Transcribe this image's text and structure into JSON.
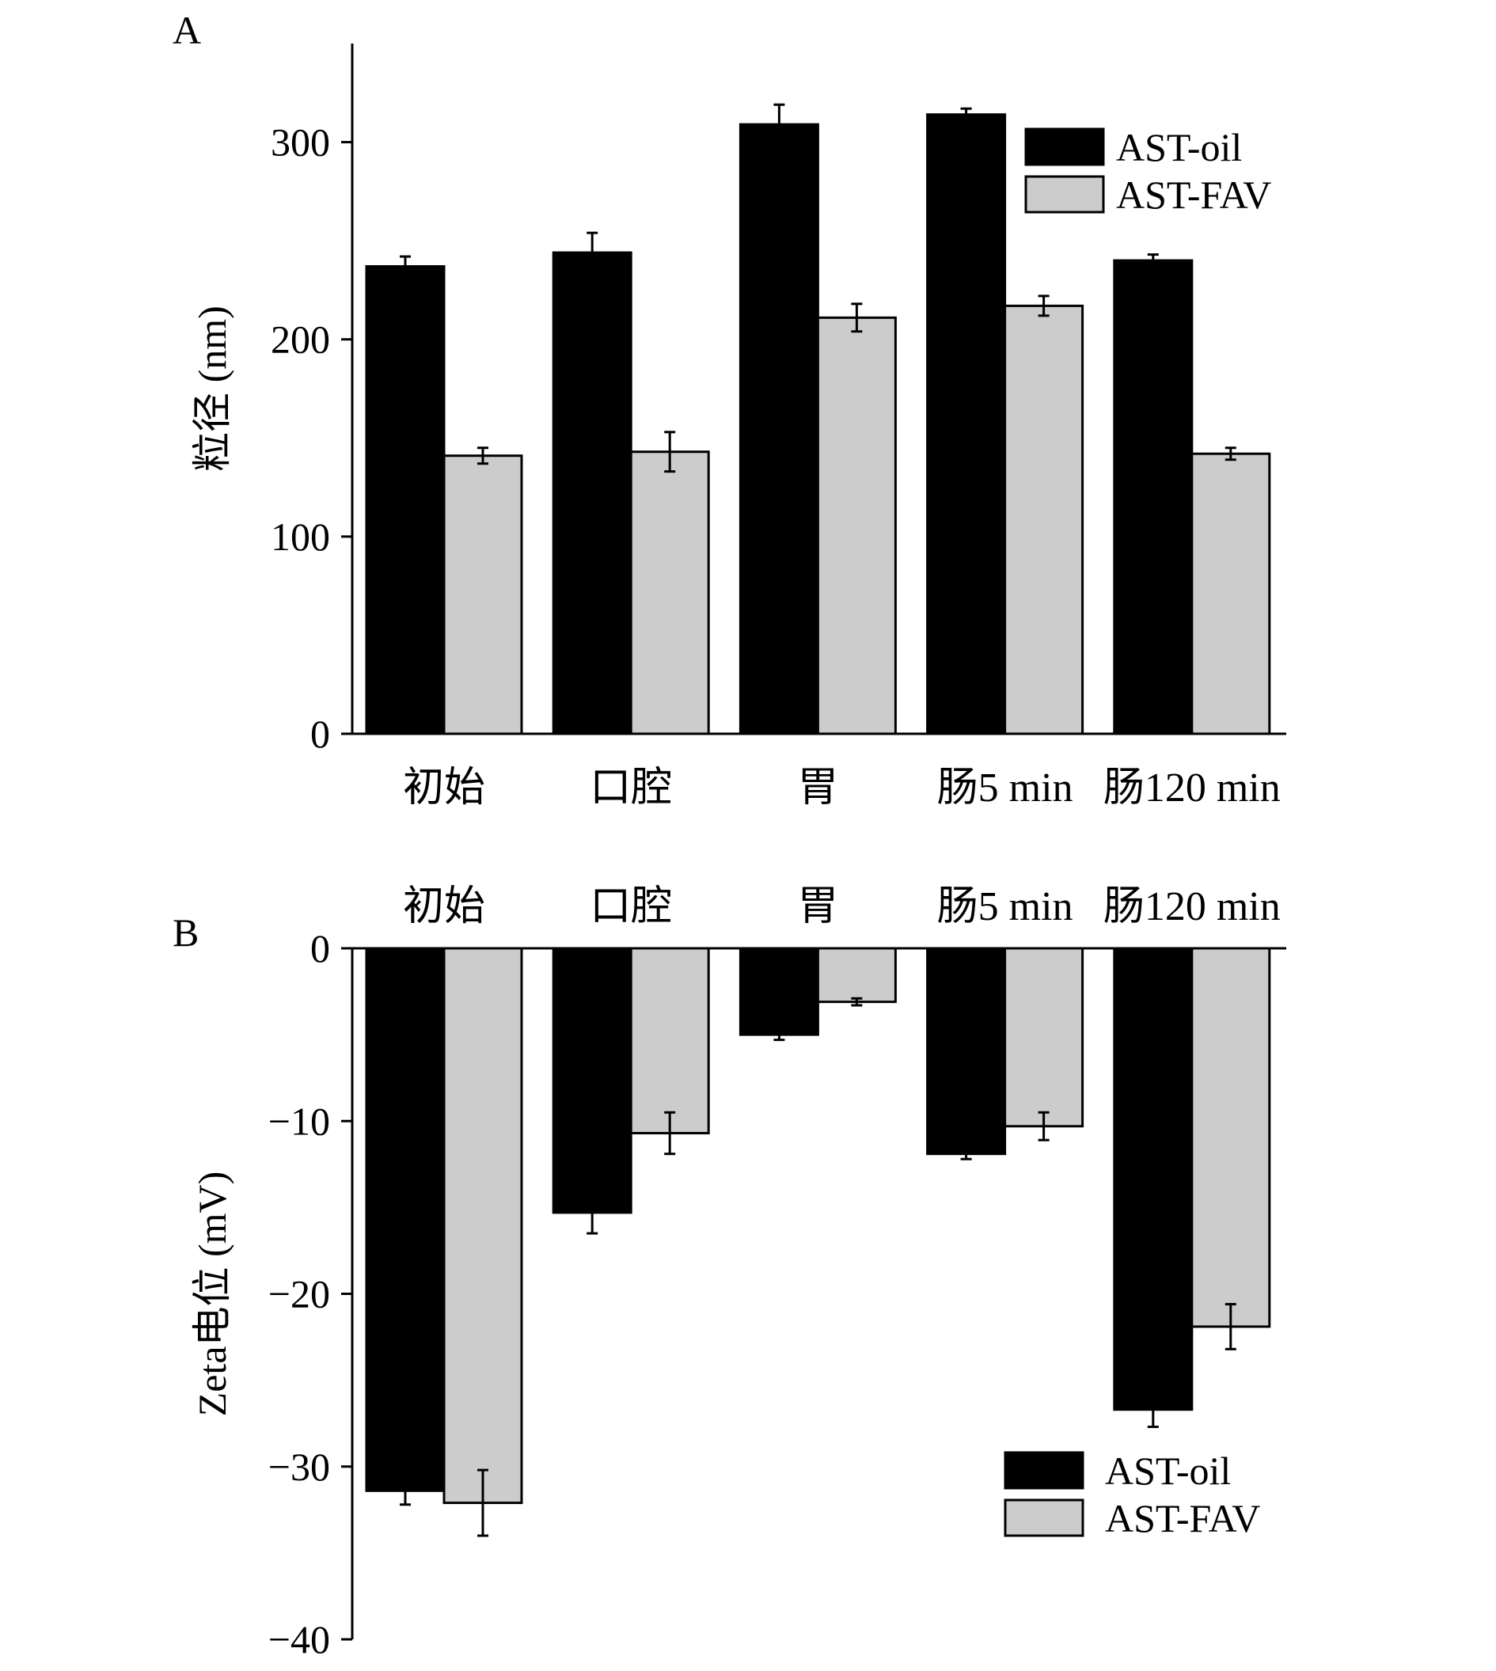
{
  "chart_data": [
    {
      "panel": "A",
      "type": "bar",
      "categories": [
        "初始",
        "口腔",
        "胃",
        "肠5 min",
        "肠120 min"
      ],
      "series": [
        {
          "name": "AST-oil",
          "color": "#000000",
          "values": [
            237,
            244,
            309,
            314,
            240
          ],
          "errors": [
            5,
            10,
            10,
            3,
            3
          ]
        },
        {
          "name": "AST-FAV",
          "color": "#cccccc",
          "values": [
            141,
            143,
            211,
            217,
            142
          ],
          "errors": [
            4,
            10,
            7,
            5,
            3
          ]
        }
      ],
      "ylabel": "粒径 (nm)",
      "xlabel": "",
      "ylim": [
        0,
        350
      ],
      "yticks": [
        0,
        100,
        200,
        300
      ],
      "legend_position": "top-right",
      "grid": false
    },
    {
      "panel": "B",
      "type": "bar",
      "categories": [
        "初始",
        "口腔",
        "胃",
        "肠5 min",
        "肠120 min"
      ],
      "series": [
        {
          "name": "AST-oil",
          "color": "#000000",
          "values": [
            -31.4,
            -15.3,
            -5.0,
            -11.9,
            -26.7
          ],
          "errors": [
            0.8,
            1.2,
            0.3,
            0.3,
            1.0
          ]
        },
        {
          "name": "AST-FAV",
          "color": "#cccccc",
          "values": [
            -32.1,
            -10.7,
            -3.1,
            -10.3,
            -21.9
          ],
          "errors": [
            1.9,
            1.2,
            0.2,
            0.8,
            1.3
          ]
        }
      ],
      "ylabel": "Zeta电位 (mV)",
      "xlabel": "",
      "ylim": [
        -40,
        0
      ],
      "yticks": [
        0,
        -10,
        -20,
        -30,
        -40
      ],
      "ytick_labels": [
        "0",
        "−10",
        "−20",
        "−30",
        "−40"
      ],
      "legend_position": "bottom-right",
      "grid": false
    }
  ]
}
